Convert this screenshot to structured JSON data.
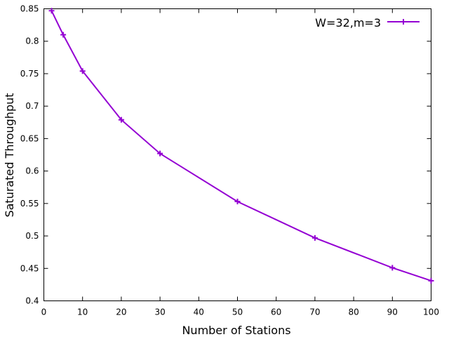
{
  "chart_data": {
    "type": "line",
    "title": "",
    "xlabel": "Number of Stations",
    "ylabel": "Saturated Throughput",
    "xlim": [
      0,
      100
    ],
    "ylim": [
      0.4,
      0.85
    ],
    "xticks": [
      0,
      10,
      20,
      30,
      40,
      50,
      60,
      70,
      80,
      90,
      100
    ],
    "yticks": [
      0.4,
      0.45,
      0.5,
      0.55,
      0.6,
      0.65,
      0.7,
      0.75,
      0.8,
      0.85
    ],
    "xtick_labels": [
      "0",
      "10",
      "20",
      "30",
      "40",
      "50",
      "60",
      "70",
      "80",
      "90",
      "100"
    ],
    "ytick_labels": [
      "0.4",
      "0.45",
      "0.5",
      "0.55",
      "0.6",
      "0.65",
      "0.7",
      "0.75",
      "0.8",
      "0.85"
    ],
    "grid": false,
    "legend_position": "top-right",
    "series": [
      {
        "name": "W=32,m=3",
        "color": "#9400d3",
        "marker": "plus",
        "x": [
          2,
          5,
          10,
          20,
          30,
          50,
          70,
          90,
          100
        ],
        "y": [
          0.847,
          0.81,
          0.754,
          0.679,
          0.627,
          0.553,
          0.497,
          0.451,
          0.431
        ]
      }
    ]
  }
}
